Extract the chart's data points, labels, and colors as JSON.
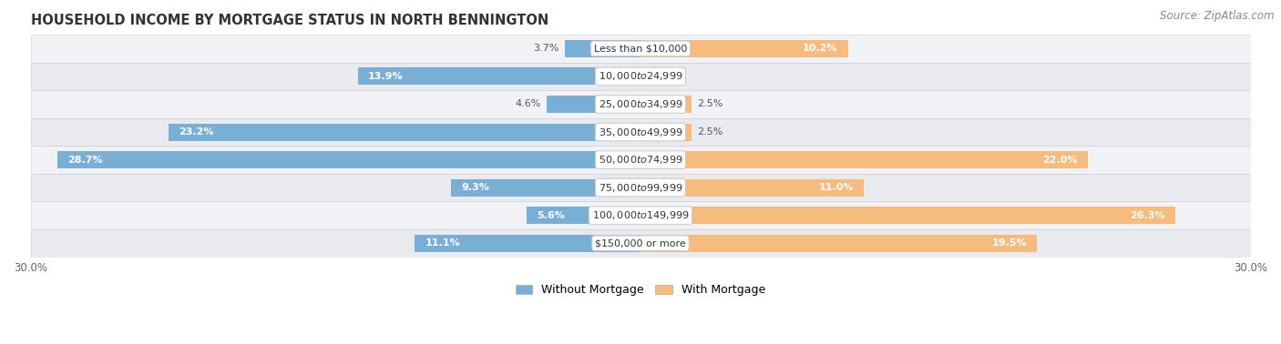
{
  "title": "HOUSEHOLD INCOME BY MORTGAGE STATUS IN NORTH BENNINGTON",
  "source": "Source: ZipAtlas.com",
  "categories": [
    "Less than $10,000",
    "$10,000 to $24,999",
    "$25,000 to $34,999",
    "$35,000 to $49,999",
    "$50,000 to $74,999",
    "$75,000 to $99,999",
    "$100,000 to $149,999",
    "$150,000 or more"
  ],
  "without_mortgage": [
    3.7,
    13.9,
    4.6,
    23.2,
    28.7,
    9.3,
    5.6,
    11.1
  ],
  "with_mortgage": [
    10.2,
    0.0,
    2.5,
    2.5,
    22.0,
    11.0,
    26.3,
    19.5
  ],
  "without_mortgage_color": "#7aafd5",
  "with_mortgage_color": "#f5bc7e",
  "xlim_left": -30,
  "xlim_right": 30,
  "label_fontsize": 8.0,
  "title_fontsize": 10.5,
  "source_fontsize": 8.5,
  "row_colors": [
    "#f0f2f5",
    "#e8eaed"
  ],
  "bar_height": 0.62,
  "inside_label_threshold": 5.0
}
